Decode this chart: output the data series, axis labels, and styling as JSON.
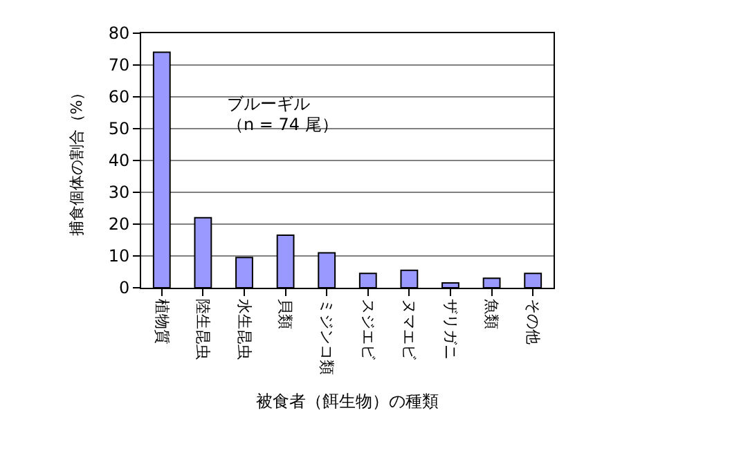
{
  "chart_data": {
    "type": "bar",
    "ylabel": "捕食個体の割合（%）",
    "xlabel": "被食者（餌生物）の種類",
    "categories": [
      "植物質",
      "陸生昆虫",
      "水生昆虫",
      "貝類",
      "ミジンコ類",
      "スジエビ",
      "ヌマエビ",
      "ザリガニ",
      "魚類",
      "その他"
    ],
    "values": [
      74,
      22,
      9.5,
      16.5,
      11,
      4.5,
      5.5,
      1.5,
      3,
      4.5
    ],
    "color": "#9999ff",
    "ylim": [
      0,
      80
    ],
    "yticks": [
      0,
      10,
      20,
      30,
      40,
      50,
      60,
      70,
      80
    ],
    "grid": "y",
    "annotations": [
      "ブルーギル",
      "（n = 74 尾）"
    ]
  }
}
